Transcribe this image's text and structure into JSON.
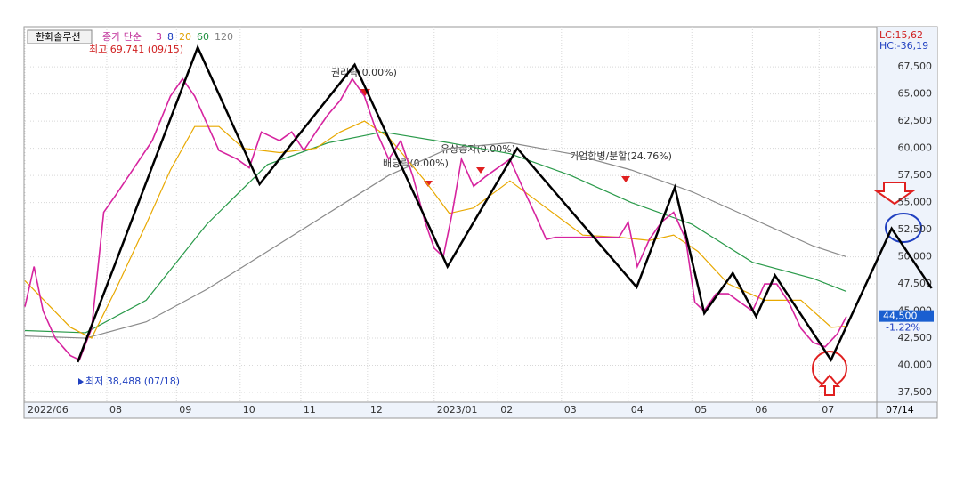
{
  "chart_data": {
    "type": "line",
    "stock_name": "한화솔루션",
    "legend_title": "종가 단순",
    "periods": [
      "3",
      "8",
      "20",
      "60",
      "120"
    ],
    "period_colors": [
      "#c0309a",
      "#2040c0",
      "#e0a000",
      "#209040",
      "#808080"
    ],
    "lc_label": "LC:15,62",
    "hc_label": "HC:-36,19",
    "high_label": "최고 69,741 (09/15)",
    "low_label": "최저 38,488 (07/18)",
    "events": [
      "권리락(0.00%)",
      "배당락(0.00%)",
      "유상증자(0.00%)",
      "기업합병/분할(24.76%)"
    ],
    "last_price": {
      "value": 44500,
      "label": "44,500"
    },
    "last_change": "-1.22%",
    "date_label": "07/14",
    "xlim": [
      0,
      281
    ],
    "xticks": [
      {
        "value": 0,
        "label": "2022/06"
      },
      {
        "value": 27,
        "label": "08"
      },
      {
        "value": 50,
        "label": "09"
      },
      {
        "value": 71,
        "label": "10"
      },
      {
        "value": 91,
        "label": "11"
      },
      {
        "value": 113,
        "label": "12"
      },
      {
        "value": 135,
        "label": "2023/01"
      },
      {
        "value": 156,
        "label": "02"
      },
      {
        "value": 177,
        "label": "03"
      },
      {
        "value": 199,
        "label": "04"
      },
      {
        "value": 220,
        "label": "05"
      },
      {
        "value": 240,
        "label": "06"
      },
      {
        "value": 262,
        "label": "07"
      }
    ],
    "ylim": [
      36600,
      71200
    ],
    "yticks": [
      {
        "value": 37500,
        "label": "37,500"
      },
      {
        "value": 40000,
        "label": "40,000"
      },
      {
        "value": 42500,
        "label": "42,500"
      },
      {
        "value": 45000,
        "label": "45,000"
      },
      {
        "value": 47500,
        "label": "47,500"
      },
      {
        "value": 50000,
        "label": "50,000"
      },
      {
        "value": 52500,
        "label": "52,500"
      },
      {
        "value": 55000,
        "label": "55,000"
      },
      {
        "value": 57500,
        "label": "57,500"
      },
      {
        "value": 60000,
        "label": "60,000"
      },
      {
        "value": 62500,
        "label": "62,500"
      },
      {
        "value": 65000,
        "label": "65,000"
      },
      {
        "value": 67500,
        "label": "67,500"
      }
    ],
    "series": [
      {
        "color": "#d6249f",
        "x": [
          0,
          3,
          6,
          10,
          15,
          18,
          22,
          26,
          30,
          36,
          42,
          48,
          52,
          56,
          60,
          64,
          70,
          74,
          78,
          84,
          88,
          92,
          96,
          100,
          104,
          108,
          112,
          116,
          120,
          124,
          128,
          132,
          135,
          138,
          141,
          144,
          148,
          152,
          156,
          160,
          164,
          168,
          172,
          175,
          180,
          188,
          196,
          199,
          202,
          206,
          210,
          214,
          218,
          221,
          224,
          228,
          232,
          236,
          240,
          244,
          248,
          252,
          256,
          260,
          264,
          268,
          271
        ],
        "values": [
          45400,
          49100,
          45000,
          42500,
          40900,
          40500,
          43400,
          54100,
          55700,
          58200,
          60700,
          64800,
          66400,
          64800,
          62300,
          59800,
          59000,
          58200,
          61500,
          60700,
          61500,
          59800,
          61500,
          63100,
          64400,
          66400,
          64800,
          61500,
          59000,
          60700,
          57400,
          53200,
          50800,
          50000,
          54100,
          59000,
          56500,
          57400,
          58200,
          59000,
          56500,
          54100,
          51600,
          51800,
          51800,
          51800,
          51800,
          53200,
          49100,
          51600,
          53200,
          54100,
          51600,
          45800,
          45000,
          46600,
          46600,
          45800,
          45000,
          47500,
          47500,
          45800,
          43400,
          42100,
          41700,
          42900,
          44500
        ]
      },
      {
        "color": "#e8a800",
        "x": [
          0,
          15,
          22,
          30,
          40,
          48,
          56,
          64,
          72,
          84,
          96,
          104,
          112,
          120,
          132,
          140,
          148,
          160,
          172,
          184,
          196,
          206,
          214,
          222,
          232,
          244,
          256,
          266,
          271
        ],
        "values": [
          47800,
          43500,
          42500,
          47000,
          53000,
          58000,
          62000,
          62000,
          60000,
          59600,
          60000,
          61500,
          62500,
          61000,
          57000,
          54000,
          54500,
          57000,
          54500,
          52000,
          51800,
          51500,
          52000,
          50500,
          47500,
          46000,
          46000,
          43500,
          43600
        ]
      },
      {
        "color": "#2a9a4a",
        "x": [
          0,
          20,
          40,
          60,
          80,
          100,
          118,
          140,
          160,
          180,
          200,
          220,
          240,
          260,
          271
        ],
        "values": [
          43200,
          43000,
          46000,
          53000,
          58500,
          60500,
          61500,
          60500,
          59500,
          57500,
          55000,
          53000,
          49500,
          48000,
          46800
        ]
      },
      {
        "color": "#8a8a8a",
        "x": [
          0,
          20,
          40,
          60,
          80,
          100,
          120,
          140,
          160,
          180,
          200,
          220,
          240,
          260,
          271
        ],
        "values": [
          42700,
          42500,
          44000,
          47000,
          50500,
          54000,
          57500,
          60000,
          60500,
          59500,
          58000,
          56000,
          53500,
          51000,
          50000
        ]
      }
    ],
    "drawing": {
      "color": "#000000",
      "x": [
        17.4,
        57,
        77.4,
        108.8,
        139.4,
        162.4,
        201.8,
        214.4,
        224.1,
        233.5,
        241.2,
        247.4,
        265.9,
        285.9,
        299.1
      ],
      "values": [
        40300,
        69300,
        56700,
        67700,
        49100,
        60000,
        47200,
        56400,
        44800,
        48500,
        44500,
        48300,
        40500,
        52600,
        47100
      ]
    }
  }
}
